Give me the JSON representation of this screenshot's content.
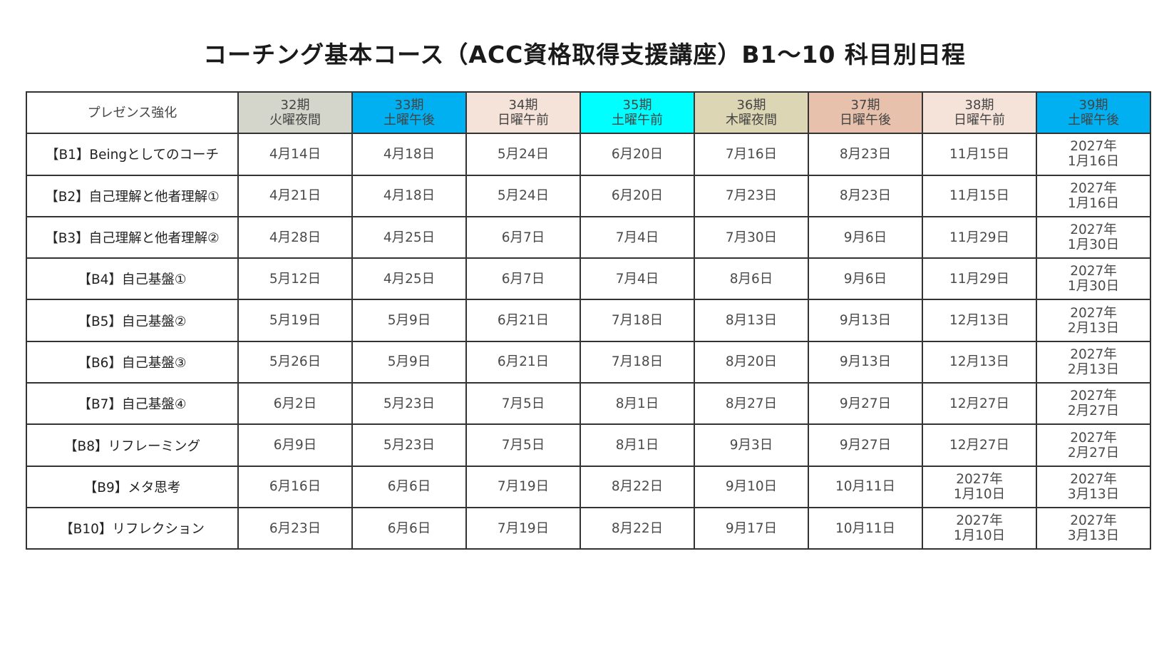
{
  "title": "コーチング基本コース（ACC資格取得支援講座）B1〜10 科目別日程",
  "table": {
    "corner_label": "プレゼンス強化",
    "cohorts": [
      {
        "period": "32期",
        "slot": "火曜夜間",
        "color": "#d4d6cc"
      },
      {
        "period": "33期",
        "slot": "土曜午後",
        "color": "#00b0f0"
      },
      {
        "period": "34期",
        "slot": "日曜午前",
        "color": "#f5e3da"
      },
      {
        "period": "35期",
        "slot": "土曜午前",
        "color": "#00ffff"
      },
      {
        "period": "36期",
        "slot": "木曜夜間",
        "color": "#dcd6b4"
      },
      {
        "period": "37期",
        "slot": "日曜午後",
        "color": "#e8c1ac"
      },
      {
        "period": "38期",
        "slot": "日曜午前",
        "color": "#f5e3da"
      },
      {
        "period": "39期",
        "slot": "土曜午後",
        "color": "#00b0f0"
      }
    ],
    "rows": [
      {
        "subject": "【B1】Beingとしてのコーチ",
        "dates": [
          [
            "4月14日"
          ],
          [
            "4月18日"
          ],
          [
            "5月24日"
          ],
          [
            "6月20日"
          ],
          [
            "7月16日"
          ],
          [
            "8月23日"
          ],
          [
            "11月15日"
          ],
          [
            "2027年",
            "1月16日"
          ]
        ]
      },
      {
        "subject": "【B2】自己理解と他者理解①",
        "dates": [
          [
            "4月21日"
          ],
          [
            "4月18日"
          ],
          [
            "5月24日"
          ],
          [
            "6月20日"
          ],
          [
            "7月23日"
          ],
          [
            "8月23日"
          ],
          [
            "11月15日"
          ],
          [
            "2027年",
            "1月16日"
          ]
        ]
      },
      {
        "subject": "【B3】自己理解と他者理解②",
        "dates": [
          [
            "4月28日"
          ],
          [
            "4月25日"
          ],
          [
            "6月7日"
          ],
          [
            "7月4日"
          ],
          [
            "7月30日"
          ],
          [
            "9月6日"
          ],
          [
            "11月29日"
          ],
          [
            "2027年",
            "1月30日"
          ]
        ]
      },
      {
        "subject": "【B4】自己基盤①",
        "dates": [
          [
            "5月12日"
          ],
          [
            "4月25日"
          ],
          [
            "6月7日"
          ],
          [
            "7月4日"
          ],
          [
            "8月6日"
          ],
          [
            "9月6日"
          ],
          [
            "11月29日"
          ],
          [
            "2027年",
            "1月30日"
          ]
        ]
      },
      {
        "subject": "【B5】自己基盤②",
        "dates": [
          [
            "5月19日"
          ],
          [
            "5月9日"
          ],
          [
            "6月21日"
          ],
          [
            "7月18日"
          ],
          [
            "8月13日"
          ],
          [
            "9月13日"
          ],
          [
            "12月13日"
          ],
          [
            "2027年",
            "2月13日"
          ]
        ]
      },
      {
        "subject": "【B6】自己基盤③",
        "dates": [
          [
            "5月26日"
          ],
          [
            "5月9日"
          ],
          [
            "6月21日"
          ],
          [
            "7月18日"
          ],
          [
            "8月20日"
          ],
          [
            "9月13日"
          ],
          [
            "12月13日"
          ],
          [
            "2027年",
            "2月13日"
          ]
        ]
      },
      {
        "subject": "【B7】自己基盤④",
        "dates": [
          [
            "6月2日"
          ],
          [
            "5月23日"
          ],
          [
            "7月5日"
          ],
          [
            "8月1日"
          ],
          [
            "8月27日"
          ],
          [
            "9月27日"
          ],
          [
            "12月27日"
          ],
          [
            "2027年",
            "2月27日"
          ]
        ]
      },
      {
        "subject": "【B8】リフレーミング",
        "dates": [
          [
            "6月9日"
          ],
          [
            "5月23日"
          ],
          [
            "7月5日"
          ],
          [
            "8月1日"
          ],
          [
            "9月3日"
          ],
          [
            "9月27日"
          ],
          [
            "12月27日"
          ],
          [
            "2027年",
            "2月27日"
          ]
        ]
      },
      {
        "subject": "【B9】メタ思考",
        "dates": [
          [
            "6月16日"
          ],
          [
            "6月6日"
          ],
          [
            "7月19日"
          ],
          [
            "8月22日"
          ],
          [
            "9月10日"
          ],
          [
            "10月11日"
          ],
          [
            "2027年",
            "1月10日"
          ],
          [
            "2027年",
            "3月13日"
          ]
        ]
      },
      {
        "subject": "【B10】リフレクション",
        "dates": [
          [
            "6月23日"
          ],
          [
            "6月6日"
          ],
          [
            "7月19日"
          ],
          [
            "8月22日"
          ],
          [
            "9月17日"
          ],
          [
            "10月11日"
          ],
          [
            "2027年",
            "1月10日"
          ],
          [
            "2027年",
            "3月13日"
          ]
        ]
      }
    ]
  }
}
